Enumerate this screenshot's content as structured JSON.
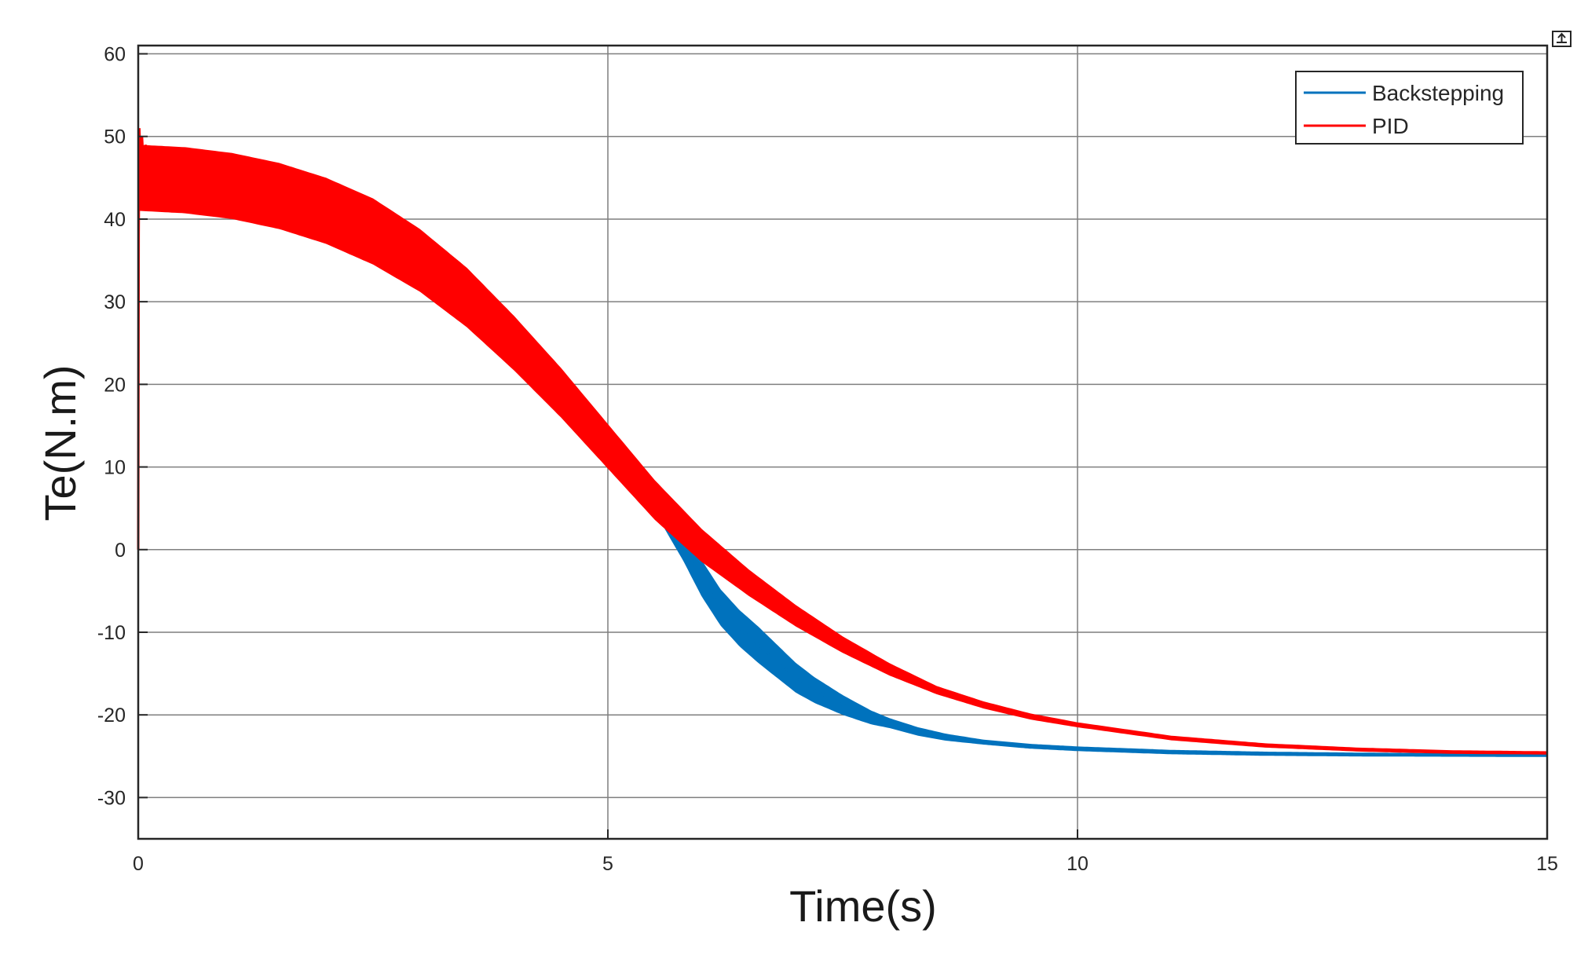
{
  "chart_data": {
    "type": "line",
    "title": "",
    "xlabel": "Time(s)",
    "ylabel": "Te(N.m)",
    "xlim": [
      0,
      15
    ],
    "ylim": [
      -35,
      61
    ],
    "xticks": [
      0,
      5,
      10,
      15
    ],
    "xtick_labels": [
      "0",
      "5",
      "10",
      "15"
    ],
    "yticks": [
      60,
      50,
      40,
      30,
      20,
      10,
      0,
      -10,
      -20,
      -30
    ],
    "ytick_labels": [
      "60",
      "50",
      "40",
      "30",
      "20",
      "10",
      "0",
      "-10",
      "-20",
      "-30"
    ],
    "grid": true,
    "legend_position": "top-right",
    "series": [
      {
        "name": "Backstepping",
        "color": "#0072BD",
        "ripple_band": [
          [
            0,
            0.6
          ],
          [
            4.5,
            0.8
          ],
          [
            5.2,
            0.6
          ],
          [
            5.6,
            1.4
          ],
          [
            6.0,
            2.2
          ],
          [
            6.6,
            2.2
          ],
          [
            7.0,
            1.8
          ],
          [
            7.5,
            1.2
          ],
          [
            8.0,
            0.6
          ],
          [
            9.0,
            0.3
          ],
          [
            15,
            0.2
          ]
        ],
        "x": [
          5.2,
          5.4,
          5.6,
          5.8,
          6.0,
          6.2,
          6.4,
          6.6,
          6.8,
          7.0,
          7.2,
          7.5,
          7.8,
          8.0,
          8.3,
          8.6,
          9.0,
          9.5,
          10.0,
          10.5,
          11.0,
          12.0,
          13.0,
          14.0,
          15.0
        ],
        "y": [
          11.0,
          7.5,
          4.0,
          0.5,
          -3.5,
          -7.0,
          -9.5,
          -11.5,
          -13.5,
          -15.5,
          -17.0,
          -18.8,
          -20.3,
          -21.0,
          -22.0,
          -22.7,
          -23.3,
          -23.8,
          -24.1,
          -24.3,
          -24.5,
          -24.7,
          -24.8,
          -24.85,
          -24.9
        ]
      },
      {
        "name": "PID",
        "color": "#FF0000",
        "ripple_band": [
          [
            0,
            4.0
          ],
          [
            0.5,
            4.0
          ],
          [
            1.5,
            4.0
          ],
          [
            2.5,
            4.0
          ],
          [
            3.5,
            3.6
          ],
          [
            4.5,
            3.0
          ],
          [
            5.5,
            2.4
          ],
          [
            6.5,
            1.6
          ],
          [
            7.5,
            1.0
          ],
          [
            8.5,
            0.5
          ],
          [
            10.0,
            0.3
          ],
          [
            15,
            0.2
          ]
        ],
        "x": [
          0.0,
          0.5,
          1.0,
          1.5,
          2.0,
          2.5,
          3.0,
          3.5,
          4.0,
          4.5,
          5.0,
          5.5,
          6.0,
          6.5,
          7.0,
          7.5,
          8.0,
          8.5,
          9.0,
          9.5,
          10.0,
          11.0,
          12.0,
          13.0,
          14.0,
          15.0
        ],
        "y": [
          45.0,
          44.7,
          44.0,
          42.8,
          41.0,
          38.5,
          35.0,
          30.5,
          25.0,
          19.0,
          12.5,
          6.0,
          0.5,
          -4.0,
          -8.0,
          -11.5,
          -14.5,
          -17.0,
          -18.8,
          -20.2,
          -21.2,
          -22.8,
          -23.7,
          -24.2,
          -24.5,
          -24.6
        ]
      }
    ]
  }
}
